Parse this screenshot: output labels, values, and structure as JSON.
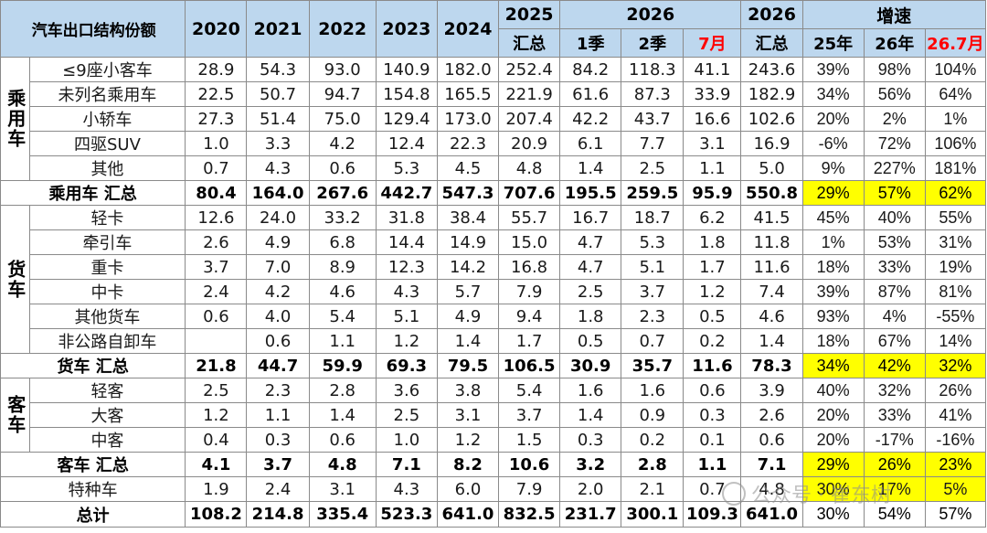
{
  "header": {
    "title": "汽车出口结构份额",
    "years": [
      "2020",
      "2021",
      "2022",
      "2023",
      "2024"
    ],
    "y2025_top": "2025",
    "y2025_bottom": "汇总",
    "y2026_group": "2026",
    "y2026_q1": "1季",
    "y2026_q2": "2季",
    "y2026_jul": "7月",
    "y2026sum_top": "2026",
    "y2026sum_bottom": "汇总",
    "growth": "增速",
    "g25": "25年",
    "g26": "26年",
    "g267": "26.7月"
  },
  "sections": {
    "passenger": "乘用车",
    "truck": "货车",
    "bus": "客车"
  },
  "rows": [
    {
      "label": "≤9座小客车",
      "vals": [
        "28.9",
        "54.3",
        "93.0",
        "140.9",
        "182.0",
        "252.4",
        "84.2",
        "118.3",
        "41.1",
        "243.6"
      ],
      "g": [
        "39%",
        "98%",
        "104%"
      ]
    },
    {
      "label": "未列名乘用车",
      "vals": [
        "22.5",
        "50.7",
        "94.7",
        "154.8",
        "165.5",
        "221.9",
        "61.6",
        "87.3",
        "33.9",
        "182.9"
      ],
      "g": [
        "34%",
        "56%",
        "64%"
      ]
    },
    {
      "label": "小轿车",
      "vals": [
        "27.3",
        "51.4",
        "75.0",
        "129.4",
        "173.0",
        "207.4",
        "42.2",
        "43.7",
        "16.6",
        "102.6"
      ],
      "g": [
        "20%",
        "2%",
        "1%"
      ]
    },
    {
      "label": "四驱SUV",
      "vals": [
        "1.0",
        "3.3",
        "4.2",
        "12.4",
        "22.3",
        "20.9",
        "6.1",
        "7.7",
        "3.1",
        "16.9"
      ],
      "g": [
        "-6%",
        "72%",
        "106%"
      ]
    },
    {
      "label": "其他",
      "vals": [
        "0.7",
        "4.3",
        "0.6",
        "5.3",
        "4.5",
        "4.8",
        "1.4",
        "2.5",
        "1.1",
        "5.0"
      ],
      "g": [
        "9%",
        "227%",
        "181%"
      ]
    },
    {
      "label": "乘用车 汇总",
      "vals": [
        "80.4",
        "164.0",
        "267.6",
        "442.7",
        "547.3",
        "707.6",
        "195.5",
        "259.5",
        "95.9",
        "550.8"
      ],
      "g": [
        "29%",
        "57%",
        "62%"
      ]
    },
    {
      "label": "轻卡",
      "vals": [
        "12.6",
        "24.0",
        "33.2",
        "31.8",
        "38.4",
        "55.7",
        "16.7",
        "18.7",
        "6.2",
        "41.5"
      ],
      "g": [
        "45%",
        "40%",
        "55%"
      ]
    },
    {
      "label": "牵引车",
      "vals": [
        "2.6",
        "4.9",
        "6.8",
        "14.4",
        "14.9",
        "15.0",
        "4.7",
        "5.3",
        "1.8",
        "11.8"
      ],
      "g": [
        "1%",
        "53%",
        "31%"
      ]
    },
    {
      "label": "重卡",
      "vals": [
        "3.7",
        "7.0",
        "8.9",
        "12.3",
        "14.2",
        "16.8",
        "4.7",
        "5.1",
        "1.7",
        "11.6"
      ],
      "g": [
        "18%",
        "33%",
        "19%"
      ]
    },
    {
      "label": "中卡",
      "vals": [
        "2.4",
        "4.2",
        "4.6",
        "4.3",
        "5.7",
        "7.9",
        "2.5",
        "3.7",
        "1.2",
        "7.4"
      ],
      "g": [
        "39%",
        "87%",
        "81%"
      ]
    },
    {
      "label": "其他货车",
      "vals": [
        "0.6",
        "4.0",
        "5.4",
        "5.1",
        "4.9",
        "9.4",
        "1.8",
        "2.3",
        "0.5",
        "4.6"
      ],
      "g": [
        "93%",
        "4%",
        "-55%"
      ]
    },
    {
      "label": "非公路自卸车",
      "vals": [
        "",
        "0.6",
        "1.1",
        "1.2",
        "1.4",
        "1.7",
        "0.5",
        "0.7",
        "0.2",
        "1.4"
      ],
      "g": [
        "18%",
        "67%",
        "14%"
      ]
    },
    {
      "label": "货车 汇总",
      "vals": [
        "21.8",
        "44.7",
        "59.9",
        "69.3",
        "79.5",
        "106.5",
        "30.9",
        "35.7",
        "11.6",
        "78.3"
      ],
      "g": [
        "34%",
        "42%",
        "32%"
      ]
    },
    {
      "label": "轻客",
      "vals": [
        "2.5",
        "2.3",
        "2.8",
        "3.6",
        "3.8",
        "5.4",
        "1.6",
        "1.6",
        "0.6",
        "3.9"
      ],
      "g": [
        "40%",
        "32%",
        "26%"
      ]
    },
    {
      "label": "大客",
      "vals": [
        "1.2",
        "1.1",
        "1.4",
        "2.5",
        "3.1",
        "3.7",
        "1.4",
        "0.9",
        "0.3",
        "2.6"
      ],
      "g": [
        "20%",
        "33%",
        "41%"
      ]
    },
    {
      "label": "中客",
      "vals": [
        "0.4",
        "0.3",
        "0.6",
        "1.0",
        "1.2",
        "1.5",
        "0.3",
        "0.2",
        "0.1",
        "0.6"
      ],
      "g": [
        "20%",
        "-17%",
        "-16%"
      ]
    },
    {
      "label": "客车 汇总",
      "vals": [
        "4.1",
        "3.7",
        "4.8",
        "7.1",
        "8.2",
        "10.6",
        "3.2",
        "2.8",
        "1.1",
        "7.1"
      ],
      "g": [
        "29%",
        "26%",
        "23%"
      ]
    },
    {
      "label": "特种车",
      "vals": [
        "1.9",
        "2.4",
        "3.1",
        "4.3",
        "6.0",
        "7.9",
        "2.0",
        "2.1",
        "0.7",
        "4.8"
      ],
      "g": [
        "30%",
        "17%",
        "5%"
      ]
    },
    {
      "label": "总计",
      "vals": [
        "108.2",
        "214.8",
        "335.4",
        "523.3",
        "641.0",
        "832.5",
        "231.7",
        "300.1",
        "109.3",
        "641.0"
      ],
      "g": [
        "30%",
        "54%",
        "57%"
      ]
    }
  ],
  "watermark": "公众号 · 崔东树",
  "colors": {
    "header_bg": "#bdd7ee",
    "highlight": "#ffff00",
    "red": "#e8403a"
  }
}
